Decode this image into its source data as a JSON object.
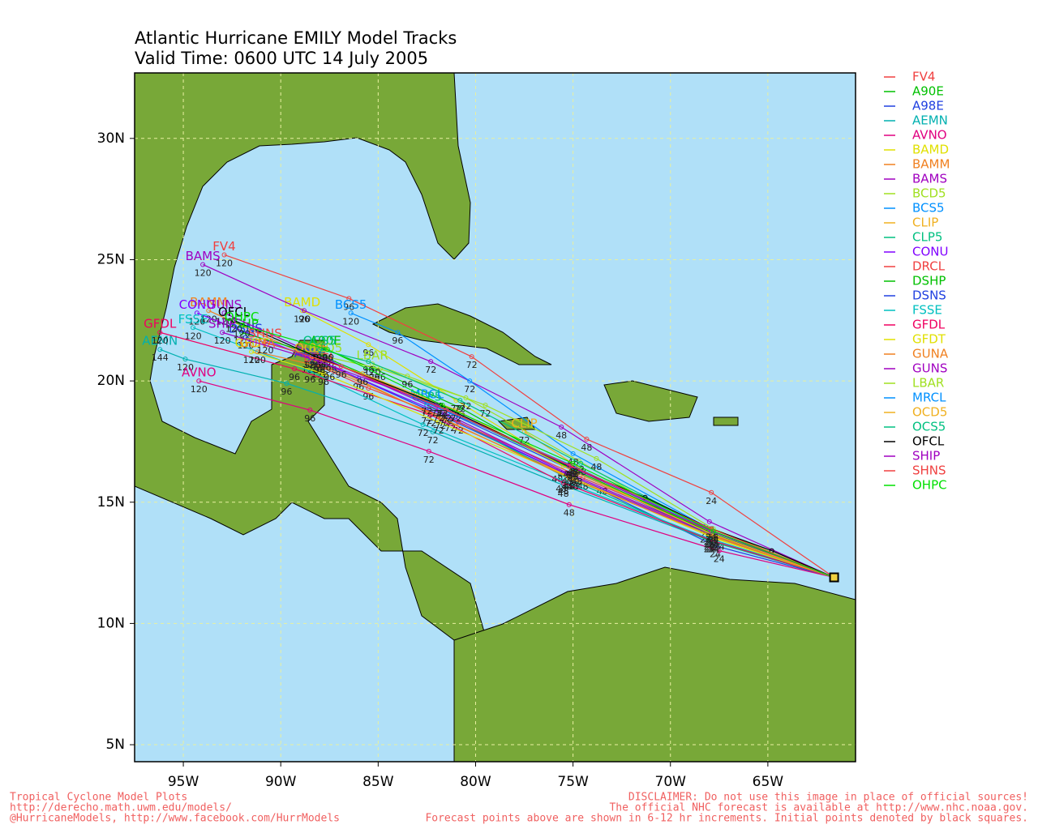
{
  "header": {
    "title": "Atlantic Hurricane EMILY Model Tracks",
    "subtitle": "Valid Time: 0600 UTC 14 July 2005"
  },
  "map": {
    "lonlim": [
      -97.5,
      -60.5
    ],
    "latlim": [
      4.3,
      32.7
    ],
    "grid": true,
    "lon_ticks": [
      {
        "value": -95,
        "label": "95W"
      },
      {
        "value": -90,
        "label": "90W"
      },
      {
        "value": -85,
        "label": "85W"
      },
      {
        "value": -80,
        "label": "80W"
      },
      {
        "value": -75,
        "label": "75W"
      },
      {
        "value": -70,
        "label": "70W"
      },
      {
        "value": -65,
        "label": "65W"
      }
    ],
    "lat_ticks": [
      {
        "value": 5,
        "label": "5N"
      },
      {
        "value": 10,
        "label": "10N"
      },
      {
        "value": 15,
        "label": "15N"
      },
      {
        "value": 20,
        "label": "20N"
      },
      {
        "value": 25,
        "label": "25N"
      },
      {
        "value": 30,
        "label": "30N"
      }
    ]
  },
  "tracks": [
    {
      "name": "FV4",
      "color": "#f04040",
      "lon": [
        -61.6,
        -67.9,
        -74.3,
        -80.2,
        -86.5,
        -92.9
      ],
      "lat": [
        11.9,
        15.4,
        17.6,
        21.0,
        23.4,
        25.2
      ],
      "hour_labels": [
        null,
        24,
        48,
        72,
        96,
        120
      ]
    },
    {
      "name": "A90E",
      "color": "#00c000",
      "lon": [
        -61.6,
        -67.8,
        -74.8,
        -80.8,
        -85.2,
        -87.7
      ],
      "lat": [
        11.9,
        13.8,
        16.2,
        18.9,
        20.5,
        21.3
      ],
      "hour_labels": [
        null,
        24,
        48,
        72,
        96,
        120
      ]
    },
    {
      "name": "A98E",
      "color": "#2040e0",
      "lon": [
        -61.6,
        -67.7,
        -74.9,
        -81.3,
        -86.0,
        -88.5
      ],
      "lat": [
        11.9,
        13.2,
        16.0,
        18.4,
        20.1,
        20.8
      ],
      "hour_labels": [
        null,
        24,
        48,
        72,
        96,
        120
      ]
    },
    {
      "name": "AEMN",
      "color": "#00b0b0",
      "lon": [
        -61.6,
        -67.9,
        -75.5,
        -82.2,
        -89.7,
        -94.9,
        -96.2
      ],
      "lat": [
        11.9,
        13.4,
        15.7,
        17.9,
        19.9,
        20.9,
        21.3
      ],
      "hour_labels": [
        null,
        24,
        48,
        72,
        96,
        120,
        144
      ]
    },
    {
      "name": "AVNO",
      "color": "#e00080",
      "lon": [
        -61.6,
        -67.5,
        -75.2,
        -82.4,
        -88.5,
        -94.2
      ],
      "lat": [
        11.9,
        13.0,
        14.9,
        17.1,
        18.8,
        20.0
      ],
      "hour_labels": [
        null,
        24,
        48,
        72,
        96,
        120
      ]
    },
    {
      "name": "BAMD",
      "color": "#e0e000",
      "lon": [
        -61.6,
        -68.2,
        -75.5,
        -81.0,
        -85.5,
        -88.9
      ],
      "lat": [
        11.9,
        13.8,
        16.5,
        19.2,
        21.5,
        22.9
      ],
      "hour_labels": [
        null,
        24,
        48,
        72,
        96,
        120
      ]
    },
    {
      "name": "BAMM",
      "color": "#f08020",
      "lon": [
        -61.6,
        -68.0,
        -75.8,
        -82.5,
        -88.5,
        -93.7
      ],
      "lat": [
        11.9,
        13.7,
        16.3,
        18.7,
        21.0,
        22.9
      ],
      "hour_labels": [
        null,
        24,
        48,
        72,
        96,
        120
      ]
    },
    {
      "name": "BAMS",
      "color": "#a000c0",
      "lon": [
        -61.6,
        -68.0,
        -75.6,
        -82.3,
        -88.8,
        -94.0
      ],
      "lat": [
        11.9,
        14.2,
        18.1,
        20.8,
        22.9,
        24.8
      ],
      "hour_labels": [
        null,
        24,
        48,
        72,
        96,
        120
      ]
    },
    {
      "name": "BCD5",
      "color": "#a0e020",
      "lon": [
        -61.6,
        -68.0,
        -74.7,
        -80.5,
        -84.9,
        -87.7
      ],
      "lat": [
        11.9,
        13.6,
        16.7,
        19.3,
        20.5,
        21.0
      ],
      "hour_labels": [
        null,
        24,
        48,
        72,
        96,
        120
      ]
    },
    {
      "name": "BCS5",
      "color": "#0090ff",
      "lon": [
        -61.6,
        -68.2,
        -75.0,
        -80.3,
        -84.0,
        -86.4
      ],
      "lat": [
        11.9,
        14.0,
        17.0,
        20.0,
        22.0,
        22.8
      ],
      "hour_labels": [
        null,
        24,
        48,
        72,
        96,
        120
      ]
    },
    {
      "name": "CLIP",
      "color": "#f0b020",
      "lon": [
        -61.6,
        -67.5,
        -73.5,
        -77.5
      ],
      "lat": [
        11.9,
        13.5,
        15.8,
        17.9
      ],
      "hour_labels": [
        null,
        24,
        48,
        72
      ]
    },
    {
      "name": "CLP5",
      "color": "#00c080",
      "lon": [
        -61.6,
        -68.0,
        -75.3,
        -82.5
      ],
      "lat": [
        11.9,
        13.4,
        16.0,
        19.0
      ],
      "hour_labels": [
        null,
        24,
        48,
        72
      ]
    },
    {
      "name": "CONU",
      "color": "#8000ff",
      "lon": [
        -61.6,
        -67.8,
        -75.2,
        -81.6,
        -88.0,
        -94.3
      ],
      "lat": [
        11.9,
        13.6,
        16.1,
        18.6,
        20.8,
        22.8
      ],
      "hour_labels": [
        null,
        24,
        48,
        72,
        96,
        120
      ]
    },
    {
      "name": "DRCL",
      "color": "#f04040",
      "lon": [
        -61.6,
        -67.9,
        -74.5,
        -80.9,
        -85.5,
        -88.0
      ],
      "lat": [
        11.9,
        13.8,
        16.0,
        18.3,
        19.7,
        20.6
      ],
      "hour_labels": [
        null,
        24,
        48,
        72,
        96,
        120
      ]
    },
    {
      "name": "DSHP",
      "color": "#00c000",
      "lon": [
        -61.6,
        -67.8,
        -75.1,
        -81.7,
        -87.8,
        -92.0
      ],
      "lat": [
        11.9,
        13.7,
        16.4,
        18.9,
        21.0,
        22.0
      ],
      "hour_labels": [
        null,
        24,
        48,
        72,
        96,
        120
      ]
    },
    {
      "name": "DSNS",
      "color": "#2040e0",
      "lon": [
        -61.6,
        -67.8,
        -75.0,
        -81.4,
        -87.4,
        -91.8
      ],
      "lat": [
        11.9,
        13.6,
        16.3,
        18.7,
        20.8,
        21.8
      ],
      "hour_labels": [
        null,
        24,
        48,
        72,
        96,
        120
      ]
    },
    {
      "name": "FSSE",
      "color": "#00c0c0",
      "lon": [
        -61.6,
        -68.0,
        -75.6,
        -82.7,
        -88.5,
        -94.5
      ],
      "lat": [
        11.9,
        13.5,
        15.9,
        18.2,
        20.4,
        22.2
      ],
      "hour_labels": [
        null,
        24,
        48,
        72,
        96,
        120
      ]
    },
    {
      "name": "GFDL",
      "color": "#f00060",
      "lon": [
        -61.6,
        -67.8,
        -75.5,
        -82.3,
        -89.3,
        -96.2
      ],
      "lat": [
        11.9,
        13.4,
        15.8,
        18.6,
        20.5,
        22.0
      ],
      "hour_labels": [
        null,
        24,
        48,
        72,
        96,
        120
      ]
    },
    {
      "name": "GFDT",
      "color": "#e0e000",
      "lon": [
        -61.6,
        -67.7,
        -75.0,
        -81.9,
        -87.8,
        -91.5
      ],
      "lat": [
        11.9,
        13.5,
        16.0,
        18.3,
        20.3,
        21.2
      ],
      "hour_labels": [
        null,
        24,
        48,
        72,
        96,
        120
      ]
    },
    {
      "name": "GUNA",
      "color": "#f08020",
      "lon": [
        -61.6,
        -67.8,
        -75.2,
        -81.8,
        -87.5,
        -91.2
      ],
      "lat": [
        11.9,
        13.6,
        16.0,
        18.5,
        20.5,
        21.2
      ],
      "hour_labels": [
        null,
        24,
        48,
        72,
        96,
        120
      ]
    },
    {
      "name": "GUNS",
      "color": "#a000c0",
      "lon": [
        -61.6,
        -67.9,
        -75.3,
        -81.9,
        -87.7,
        -92.9
      ],
      "lat": [
        11.9,
        13.7,
        16.2,
        18.8,
        20.9,
        22.8
      ],
      "hour_labels": [
        null,
        24,
        48,
        72,
        96,
        120
      ]
    },
    {
      "name": "LBAR",
      "color": "#a0e020",
      "lon": [
        -61.6,
        -67.8,
        -73.8,
        -79.5,
        -83.5,
        -85.3
      ],
      "lat": [
        11.9,
        13.9,
        16.8,
        19.0,
        20.2,
        20.7
      ],
      "hour_labels": [
        null,
        24,
        48,
        72,
        96,
        120
      ]
    },
    {
      "name": "MRCL",
      "color": "#0090ff",
      "lon": [
        -61.6,
        -67.9,
        -75.0,
        -82.5
      ],
      "lat": [
        11.9,
        13.8,
        16.5,
        19.1
      ],
      "hour_labels": [
        null,
        24,
        48,
        72
      ]
    },
    {
      "name": "OCD5",
      "color": "#f0b020",
      "lon": [
        -61.6,
        -67.9,
        -74.8,
        -81.0,
        -85.8,
        -88.4
      ],
      "lat": [
        11.9,
        13.7,
        16.2,
        18.8,
        20.3,
        21.0
      ],
      "hour_labels": [
        null,
        24,
        48,
        72,
        96,
        120
      ]
    },
    {
      "name": "OCS5",
      "color": "#00c080",
      "lon": [
        -61.6,
        -67.8,
        -74.6,
        -80.8,
        -85.5,
        -88.0
      ],
      "lat": [
        11.9,
        13.8,
        16.6,
        19.2,
        20.8,
        21.3
      ],
      "hour_labels": [
        null,
        24,
        48,
        72,
        96,
        120
      ]
    },
    {
      "name": "OFCL",
      "color": "#000000",
      "lon": [
        -61.6,
        -64.8,
        -67.9,
        -71.3,
        -75.0,
        -81.8,
        -88.2,
        -92.4
      ],
      "lat": [
        11.9,
        13.0,
        13.9,
        15.2,
        16.4,
        19.0,
        21.0,
        22.5
      ],
      "hour_labels": [
        null,
        null,
        24,
        null,
        48,
        72,
        96,
        120
      ]
    },
    {
      "name": "SHIP",
      "color": "#a000c0",
      "lon": [
        -61.6,
        -67.9,
        -75.2,
        -82.0,
        -88.0,
        -93.0
      ],
      "lat": [
        11.9,
        13.8,
        16.5,
        19.0,
        20.8,
        22.0
      ],
      "hour_labels": [
        null,
        24,
        48,
        72,
        96,
        120
      ]
    },
    {
      "name": "SHNS",
      "color": "#f04040",
      "lon": [
        -61.6,
        -67.9,
        -75.1,
        -81.5,
        -86.9,
        -90.8
      ],
      "lat": [
        11.9,
        13.9,
        16.5,
        18.8,
        20.6,
        21.6
      ],
      "hour_labels": [
        null,
        24,
        48,
        72,
        96,
        120
      ]
    },
    {
      "name": "OHPC",
      "color": "#00e000",
      "lon": [
        -61.6,
        -67.8,
        -75.0,
        -81.7,
        -87.6,
        -92.0
      ],
      "lat": [
        11.9,
        13.8,
        16.6,
        19.0,
        21.3,
        22.3
      ],
      "hour_labels": [
        null,
        24,
        48,
        72,
        96,
        120
      ]
    }
  ],
  "footer": {
    "left": [
      "Tropical Cyclone Model Plots",
      "http://derecho.math.uwm.edu/models/",
      "@HurricaneModels, http://www.facebook.com/HurrModels"
    ],
    "right": [
      "DISCLAIMER: Do not use this image in place of official sources!",
      "The official NHC forecast is available at http://www.nhc.noaa.gov.",
      "Forecast points above are shown in 6-12 hr increments. Initial points denoted by black squares."
    ]
  }
}
